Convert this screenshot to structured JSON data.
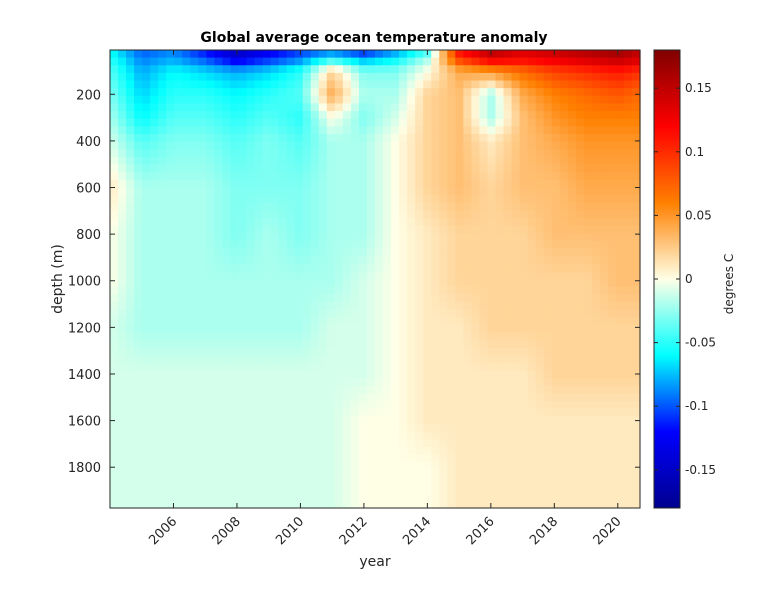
{
  "chart_data": {
    "type": "heatmap",
    "title": "Global average ocean temperature anomaly",
    "xlabel": "year",
    "ylabel": "depth (m)",
    "x_range": [
      2004.0,
      2020.7
    ],
    "y_range": [
      10,
      1975
    ],
    "y_reversed": true,
    "x_ticks": [
      2006,
      2008,
      2010,
      2012,
      2014,
      2016,
      2018,
      2020
    ],
    "y_ticks": [
      200,
      400,
      600,
      800,
      1000,
      1200,
      1400,
      1600,
      1800
    ],
    "colorbar": {
      "label": "degrees C",
      "range": [
        -0.18,
        0.18
      ],
      "ticks": [
        -0.15,
        -0.1,
        -0.05,
        0,
        0.05,
        0.1,
        0.15
      ],
      "tick_labels": [
        "-0.15",
        "-0.1",
        "-0.05",
        "0",
        "0.05",
        "0.1",
        "0.15"
      ],
      "colormap": [
        "#00008f",
        "#0000ff",
        "#00ffff",
        "#ffffe6",
        "#ff8000",
        "#ff0000",
        "#800000"
      ]
    },
    "depths": [
      10,
      50,
      100,
      200,
      300,
      400,
      600,
      800,
      1000,
      1200,
      1400,
      1600,
      1800,
      1975
    ],
    "years": [
      2004.0,
      2005.0,
      2006.0,
      2007.0,
      2008.0,
      2009.0,
      2010.0,
      2011.0,
      2012.0,
      2013.0,
      2014.0,
      2015.0,
      2016.0,
      2017.0,
      2018.0,
      2019.0,
      2020.0,
      2020.7
    ],
    "values": [
      [
        -0.06,
        -0.1,
        -0.09,
        -0.12,
        -0.16,
        -0.13,
        -0.11,
        -0.1,
        -0.12,
        -0.09,
        -0.05,
        0.12,
        0.16,
        0.14,
        0.15,
        0.16,
        0.17,
        0.15
      ],
      [
        -0.05,
        -0.09,
        -0.08,
        -0.1,
        -0.13,
        -0.11,
        -0.09,
        -0.05,
        -0.08,
        -0.06,
        -0.02,
        0.09,
        0.13,
        0.12,
        0.13,
        0.14,
        0.15,
        0.14
      ],
      [
        -0.04,
        -0.08,
        -0.06,
        -0.07,
        -0.08,
        -0.07,
        -0.05,
        0.02,
        -0.03,
        -0.03,
        0.0,
        0.04,
        0.05,
        0.07,
        0.09,
        0.1,
        0.11,
        0.1
      ],
      [
        -0.03,
        -0.07,
        -0.05,
        -0.05,
        -0.06,
        -0.05,
        -0.04,
        0.04,
        -0.02,
        -0.02,
        0.02,
        0.03,
        -0.02,
        0.04,
        0.06,
        0.07,
        0.08,
        0.07
      ],
      [
        -0.02,
        -0.06,
        -0.04,
        -0.04,
        -0.05,
        -0.04,
        -0.05,
        0.0,
        -0.03,
        -0.01,
        0.02,
        0.03,
        -0.02,
        0.03,
        0.05,
        0.06,
        0.06,
        0.06
      ],
      [
        -0.01,
        -0.04,
        -0.03,
        -0.03,
        -0.04,
        -0.03,
        -0.04,
        -0.02,
        -0.02,
        0.0,
        0.02,
        0.03,
        0.01,
        0.03,
        0.04,
        0.05,
        0.05,
        0.05
      ],
      [
        0.01,
        -0.02,
        -0.02,
        -0.02,
        -0.03,
        -0.03,
        -0.03,
        -0.02,
        -0.02,
        0.0,
        0.02,
        0.03,
        0.02,
        0.03,
        0.03,
        0.04,
        0.04,
        0.04
      ],
      [
        0.0,
        -0.02,
        -0.02,
        -0.02,
        -0.03,
        -0.02,
        -0.03,
        -0.02,
        -0.02,
        0.0,
        0.01,
        0.02,
        0.02,
        0.02,
        0.03,
        0.03,
        0.03,
        0.03
      ],
      [
        0.0,
        -0.02,
        -0.02,
        -0.02,
        -0.02,
        -0.02,
        -0.02,
        -0.02,
        -0.01,
        0.0,
        0.01,
        0.02,
        0.02,
        0.02,
        0.02,
        0.02,
        0.03,
        0.03
      ],
      [
        -0.01,
        -0.02,
        -0.02,
        -0.02,
        -0.02,
        -0.02,
        -0.02,
        -0.01,
        -0.01,
        0.0,
        0.01,
        0.01,
        0.02,
        0.02,
        0.02,
        0.02,
        0.02,
        0.02
      ],
      [
        -0.01,
        -0.01,
        -0.01,
        -0.01,
        -0.01,
        -0.01,
        -0.01,
        -0.01,
        -0.01,
        0.0,
        0.01,
        0.01,
        0.01,
        0.01,
        0.02,
        0.02,
        0.02,
        0.02
      ],
      [
        -0.01,
        -0.01,
        -0.01,
        -0.01,
        -0.01,
        -0.01,
        -0.01,
        -0.01,
        0.0,
        0.0,
        0.01,
        0.01,
        0.01,
        0.01,
        0.01,
        0.01,
        0.01,
        0.01
      ],
      [
        -0.01,
        -0.01,
        -0.01,
        -0.01,
        -0.01,
        -0.01,
        -0.01,
        -0.01,
        0.0,
        0.0,
        0.0,
        0.01,
        0.01,
        0.01,
        0.01,
        0.01,
        0.01,
        0.01
      ],
      [
        -0.01,
        -0.01,
        -0.01,
        -0.01,
        -0.01,
        -0.01,
        -0.01,
        -0.01,
        0.0,
        0.0,
        0.0,
        0.01,
        0.01,
        0.01,
        0.01,
        0.01,
        0.01,
        0.01
      ]
    ]
  }
}
